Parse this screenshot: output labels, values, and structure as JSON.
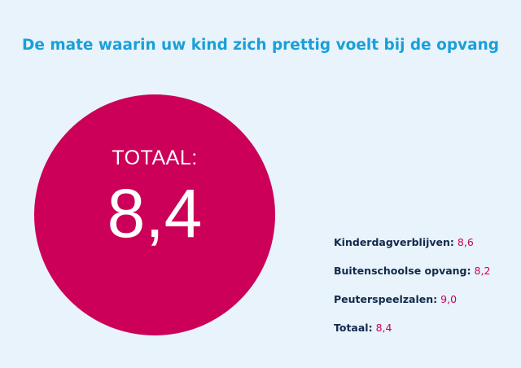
{
  "title": "De mate waarin uw kind zich prettig voelt bij de opvang",
  "total": {
    "label": "TOTAAL:",
    "value": "8,4"
  },
  "legend": [
    {
      "label": "Kinderdagverblijven:",
      "value": "8,6"
    },
    {
      "label": "Buitenschoolse opvang:",
      "value": "8,2"
    },
    {
      "label": "Peuterspeelzalen:",
      "value": "9,0"
    },
    {
      "label": "Totaal:",
      "value": "8,4"
    }
  ],
  "colors": {
    "background": "#e8f3fb",
    "title": "#1a9fd8",
    "accent": "#cc0058",
    "legend_label": "#13294b"
  }
}
